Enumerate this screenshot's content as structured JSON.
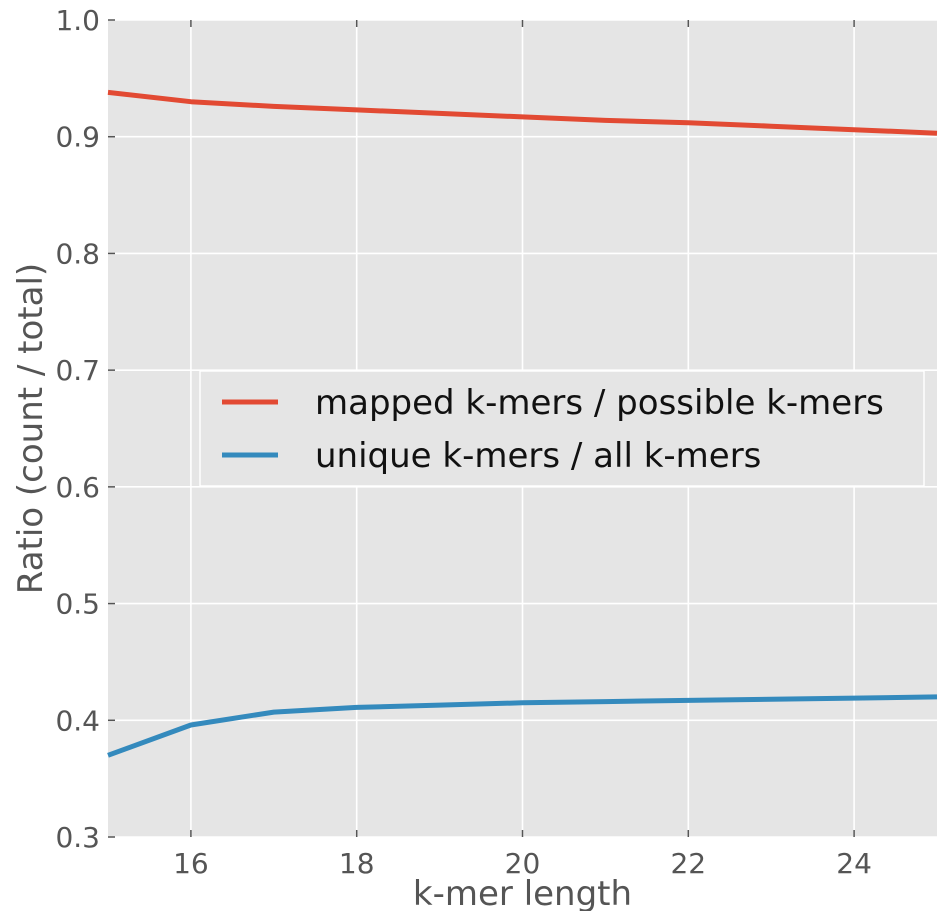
{
  "chart_data": {
    "type": "line",
    "xlabel": "k-mer length",
    "ylabel": "Ratio (count / total)",
    "xlim": [
      15,
      25
    ],
    "ylim": [
      0.3,
      1.0
    ],
    "xticks": [
      "16",
      "18",
      "20",
      "22",
      "24"
    ],
    "yticks": [
      "0.3",
      "0.4",
      "0.5",
      "0.6",
      "0.7",
      "0.8",
      "0.9",
      "1.0"
    ],
    "grid": true,
    "legend_position": "center-right",
    "x": [
      15,
      16,
      17,
      18,
      19,
      20,
      21,
      22,
      23,
      24,
      25
    ],
    "series": [
      {
        "name": "mapped k-mers / possible k-mers",
        "color": "#E24A33",
        "values": [
          0.938,
          0.93,
          0.926,
          0.923,
          0.92,
          0.917,
          0.914,
          0.912,
          0.909,
          0.906,
          0.903
        ]
      },
      {
        "name": "unique k-mers / all k-mers",
        "color": "#348ABD",
        "values": [
          0.37,
          0.396,
          0.407,
          0.411,
          0.413,
          0.415,
          0.416,
          0.417,
          0.418,
          0.419,
          0.42
        ]
      }
    ],
    "background_color": "#E5E5E5"
  }
}
